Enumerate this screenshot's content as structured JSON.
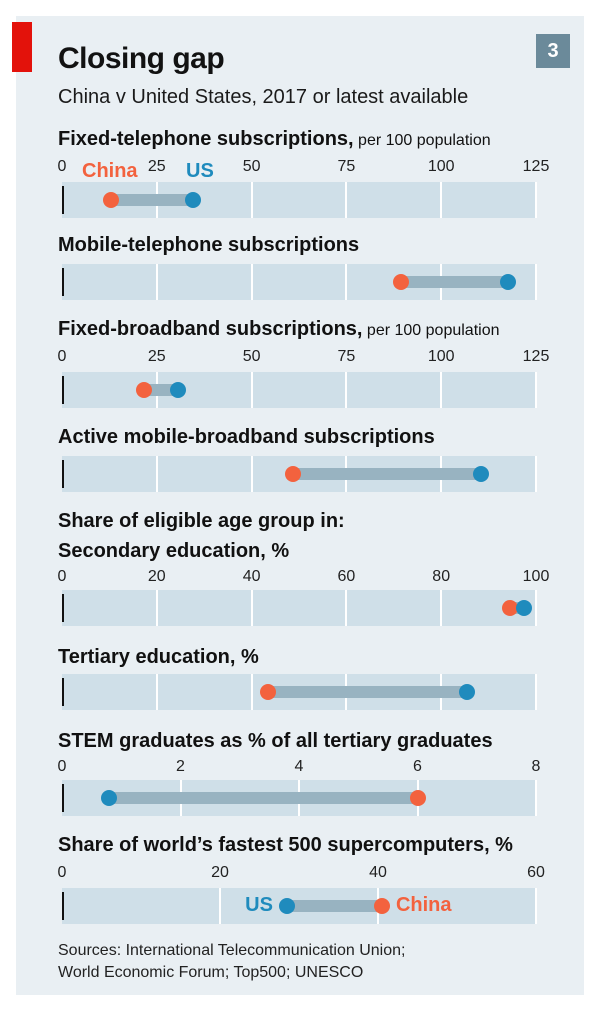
{
  "title": "Closing gap",
  "subtitle": "China v United States, 2017 or latest available",
  "chart_number": "3",
  "sources": [
    "Sources: International Telecommunication Union;",
    "World Economic Forum; Top500; UNESCO"
  ],
  "colors": {
    "china": "#f3623e",
    "us": "#1f8bbd",
    "track": "#cfdfe8",
    "connector": "#98b3c1",
    "accent_red": "#e3120b"
  },
  "legend": {
    "china": "China",
    "us": "US"
  },
  "chart_data": [
    {
      "type": "dot-plot",
      "title": "Fixed-telephone subscriptions,",
      "unit": "per 100 population",
      "xlim": [
        0,
        125
      ],
      "ticks": [
        0,
        25,
        50,
        75,
        100,
        125
      ],
      "china": 13.0,
      "us": 34.5,
      "legend_labels": true
    },
    {
      "type": "dot-plot",
      "title": "Mobile-telephone subscriptions",
      "unit": "",
      "xlim": [
        0,
        125
      ],
      "ticks": [
        0,
        25,
        50,
        75,
        100,
        125
      ],
      "china": 89.5,
      "us": 117.5
    },
    {
      "type": "dot-plot",
      "title": "Fixed-broadband subscriptions,",
      "unit": "per 100 population",
      "xlim": [
        0,
        125
      ],
      "ticks": [
        0,
        25,
        50,
        75,
        100,
        125
      ],
      "china": 21.5,
      "us": 30.5
    },
    {
      "type": "dot-plot",
      "title": "Active mobile-broadband subscriptions",
      "unit": "",
      "xlim": [
        0,
        125
      ],
      "ticks": [
        0,
        25,
        50,
        75,
        100,
        125
      ],
      "china": 61.0,
      "us": 110.5
    },
    {
      "type": "dot-plot",
      "section": "Share of eligible age group in:",
      "title": "Secondary education, %",
      "unit": "",
      "xlim": [
        0,
        100
      ],
      "ticks": [
        0,
        20,
        40,
        60,
        80,
        100
      ],
      "china": 94.5,
      "us": 97.5
    },
    {
      "type": "dot-plot",
      "title": "Tertiary education, %",
      "unit": "",
      "xlim": [
        0,
        100
      ],
      "ticks": [
        0,
        20,
        40,
        60,
        80,
        100
      ],
      "china": 43.5,
      "us": 85.5
    },
    {
      "type": "dot-plot",
      "title": "STEM graduates as % of all tertiary graduates",
      "unit": "",
      "xlim": [
        0,
        8
      ],
      "ticks": [
        0,
        2,
        4,
        6,
        8
      ],
      "china": 6.0,
      "us": 0.8
    },
    {
      "type": "dot-plot",
      "title": "Share of world’s fastest 500 supercomputers, %",
      "unit": "",
      "xlim": [
        0,
        60
      ],
      "ticks": [
        0,
        20,
        40,
        60
      ],
      "china": 40.5,
      "us": 28.5,
      "inline_labels": true
    }
  ]
}
